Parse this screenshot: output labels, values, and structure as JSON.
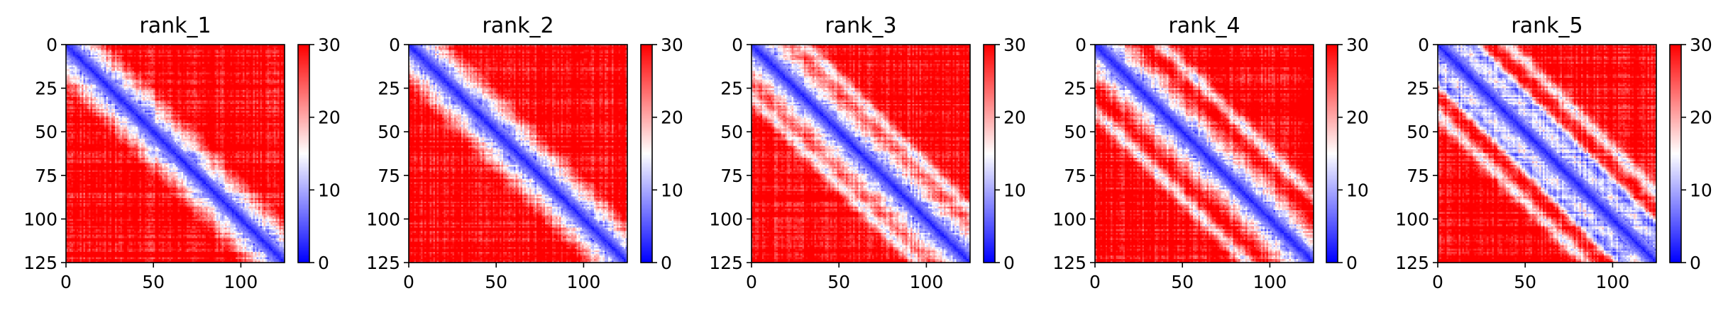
{
  "chart_data": [
    {
      "type": "heatmap",
      "title": "rank_1",
      "matrix_size": 125,
      "x_ticks": [
        0,
        50,
        100
      ],
      "y_ticks": [
        0,
        25,
        50,
        75,
        100,
        125
      ],
      "colorbar": {
        "min": 0,
        "max": 30,
        "ticks": [
          0,
          10,
          20,
          30
        ],
        "colormap": [
          "#0000ff",
          "#ffffff",
          "#ff0000"
        ]
      },
      "diagonal_band": "blue",
      "secondary_bands": []
    },
    {
      "type": "heatmap",
      "title": "rank_2",
      "matrix_size": 125,
      "x_ticks": [
        0,
        50,
        100
      ],
      "y_ticks": [
        0,
        25,
        50,
        75,
        100,
        125
      ],
      "colorbar": {
        "min": 0,
        "max": 30,
        "ticks": [
          0,
          10,
          20,
          30
        ],
        "colormap": [
          "#0000ff",
          "#ffffff",
          "#ff0000"
        ]
      },
      "diagonal_band": "blue",
      "secondary_bands": []
    },
    {
      "type": "heatmap",
      "title": "rank_3",
      "matrix_size": 125,
      "x_ticks": [
        0,
        50,
        100
      ],
      "y_ticks": [
        0,
        25,
        50,
        75,
        100,
        125
      ],
      "colorbar": {
        "min": 0,
        "max": 30,
        "ticks": [
          0,
          10,
          20,
          30
        ],
        "colormap": [
          "#0000ff",
          "#ffffff",
          "#ff0000"
        ]
      },
      "diagonal_band": "blue",
      "secondary_bands": [
        30
      ]
    },
    {
      "type": "heatmap",
      "title": "rank_4",
      "matrix_size": 125,
      "x_ticks": [
        0,
        50,
        100
      ],
      "y_ticks": [
        0,
        25,
        50,
        75,
        100,
        125
      ],
      "colorbar": {
        "min": 0,
        "max": 30,
        "ticks": [
          0,
          10,
          20,
          30
        ],
        "colormap": [
          "#0000ff",
          "#ffffff",
          "#ff0000"
        ]
      },
      "diagonal_band": "blue",
      "secondary_bands": [
        38
      ]
    },
    {
      "type": "heatmap",
      "title": "rank_5",
      "matrix_size": 125,
      "x_ticks": [
        0,
        50,
        100
      ],
      "y_ticks": [
        0,
        25,
        50,
        75,
        100,
        125
      ],
      "colorbar": {
        "min": 0,
        "max": 30,
        "ticks": [
          0,
          10,
          20,
          30
        ],
        "colormap": [
          "#0000ff",
          "#ffffff",
          "#ff0000"
        ]
      },
      "diagonal_band": "blue",
      "secondary_bands": [
        20,
        40
      ]
    }
  ]
}
